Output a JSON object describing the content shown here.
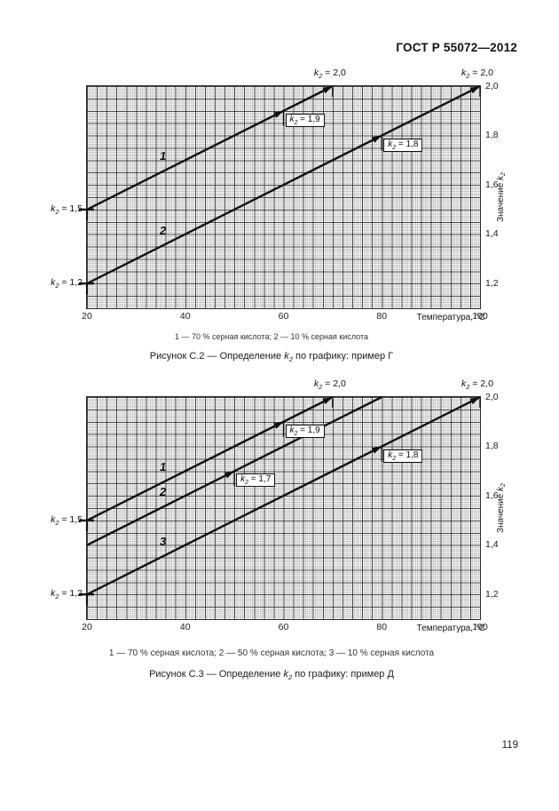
{
  "page": {
    "header": "ГОСТ Р 55072—2012",
    "page_number": "119"
  },
  "chart_data": [
    {
      "type": "line",
      "figure": "С.2",
      "caption": "Рисунок С.2 — Определение k₂ по графику: пример Г",
      "legend_text": "1 — 70 % серная кислота; 2 — 10 % серная кислота",
      "xlabel": "Температура, °C",
      "ylabel": "Значение k₂",
      "xlim": [
        20,
        100
      ],
      "ylim": [
        1.1,
        2.0
      ],
      "grid": true,
      "x_ticks": [
        20,
        40,
        60,
        80,
        100
      ],
      "x_tick_labels": [
        "20",
        "40",
        "60",
        "80",
        "100"
      ],
      "y_ticks": [
        2.0,
        1.8,
        1.6,
        1.4,
        1.2
      ],
      "y_tick_labels": [
        "2,0",
        "1,8",
        "1,6",
        "1,4",
        "1,2"
      ],
      "series": [
        {
          "name": "1",
          "substance": "70 % серная кислота",
          "points": [
            [
              20,
              1.5
            ],
            [
              70,
              2.0
            ]
          ],
          "start_label": "k₂ = 1,5",
          "end_label": "k₂ = 2,0",
          "end_arrow": true,
          "label_t": 36,
          "annotations": [
            {
              "t": 60,
              "k": 1.9,
              "label": "k₂ = 1,9"
            }
          ]
        },
        {
          "name": "2",
          "substance": "10 % серная кислота",
          "points": [
            [
              20,
              1.2
            ],
            [
              100,
              2.0
            ]
          ],
          "start_label": "k₂ = 1,2",
          "end_label": "k₂ = 2,0",
          "end_arrow": true,
          "label_t": 36,
          "annotations": [
            {
              "t": 80,
              "k": 1.8,
              "label": "k₂ = 1,8"
            }
          ]
        }
      ]
    },
    {
      "type": "line",
      "figure": "С.3",
      "caption": "Рисунок С.3 — Определение k₂ по графику: пример Д",
      "legend_text": "1 — 70 % серная кислота; 2 — 50 % серная кислота; 3 — 10 % серная кислота",
      "xlabel": "Температура, °C",
      "ylabel": "Значение k₂",
      "xlim": [
        20,
        100
      ],
      "ylim": [
        1.1,
        2.0
      ],
      "grid": true,
      "x_ticks": [
        20,
        40,
        60,
        80,
        100
      ],
      "x_tick_labels": [
        "20",
        "40",
        "60",
        "80",
        "100"
      ],
      "y_ticks": [
        2.0,
        1.8,
        1.6,
        1.4,
        1.2
      ],
      "y_tick_labels": [
        "2,0",
        "1,8",
        "1,6",
        "1,4",
        "1,2"
      ],
      "series": [
        {
          "name": "1",
          "substance": "70 % серная кислота",
          "points": [
            [
              20,
              1.5
            ],
            [
              70,
              2.0
            ]
          ],
          "start_label": "k₂ = 1,5",
          "end_label": "k₂ = 2,0",
          "end_arrow": true,
          "label_t": 36,
          "annotations": [
            {
              "t": 60,
              "k": 1.9,
              "label": "k₂ = 1,9"
            }
          ]
        },
        {
          "name": "2",
          "substance": "50 % серная кислота",
          "points": [
            [
              20,
              1.4
            ],
            [
              80,
              2.0
            ]
          ],
          "start_label": null,
          "end_label": null,
          "end_arrow": false,
          "label_t": 36,
          "annotations": [
            {
              "t": 50,
              "k": 1.7,
              "label": "k₂ = 1,7"
            }
          ]
        },
        {
          "name": "3",
          "substance": "10 % серная кислота",
          "points": [
            [
              20,
              1.2
            ],
            [
              100,
              2.0
            ]
          ],
          "start_label": "k₂ = 1,2",
          "end_label": "k₂ = 2,0",
          "end_arrow": true,
          "label_t": 36,
          "annotations": [
            {
              "t": 80,
              "k": 1.8,
              "label": "k₂ = 1,8"
            }
          ]
        }
      ]
    }
  ]
}
